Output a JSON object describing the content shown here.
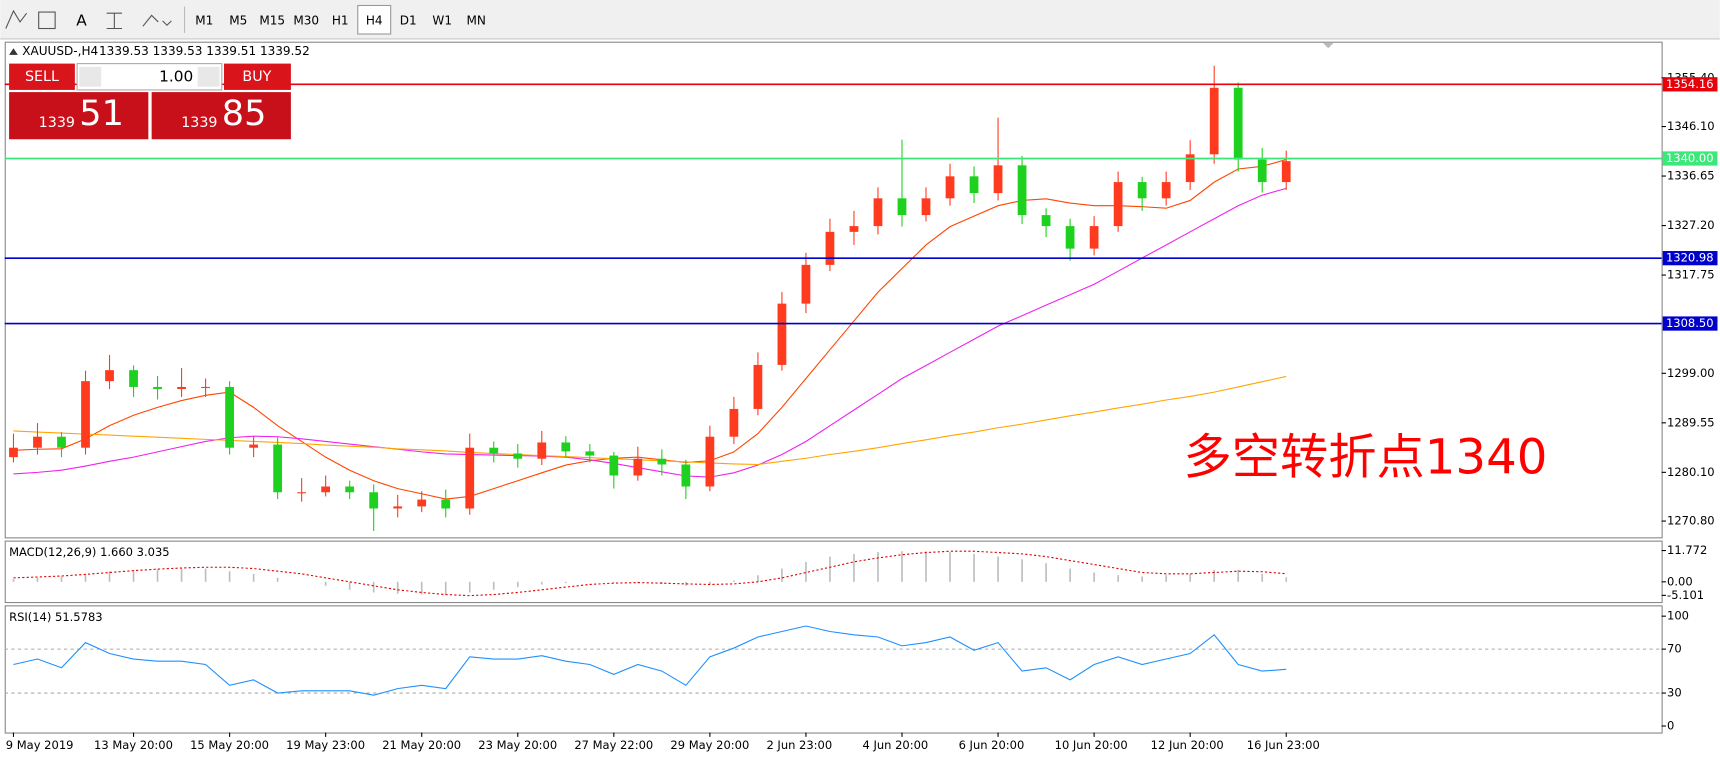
{
  "toolbar": {
    "tools": [
      "A"
    ],
    "timeframes": [
      "M1",
      "M5",
      "M15",
      "M30",
      "H1",
      "H4",
      "D1",
      "W1",
      "MN"
    ],
    "selected": "H4"
  },
  "trade_panel": {
    "sell": "SELL",
    "buy": "BUY",
    "lot": "1.00",
    "sell_big": "1339",
    "sell_small": "51",
    "buy_big": "1339",
    "buy_small": "85"
  },
  "chart_data": [
    {
      "type": "candlestick",
      "title": "XAUUSD-,H4",
      "quote": "1339.53 1339.53 1339.51 1339.52",
      "categories": [
        "9 May 2019",
        null,
        null,
        null,
        null,
        "13 May 20:00",
        null,
        null,
        null,
        "15 May 20:00",
        null,
        null,
        null,
        "19 May 23:00",
        null,
        null,
        null,
        "21 May 20:00",
        null,
        null,
        null,
        "23 May 20:00",
        null,
        null,
        null,
        "27 May 22:00",
        null,
        null,
        null,
        "29 May 20:00",
        null,
        null,
        null,
        "2 Jun 23:00",
        null,
        null,
        null,
        "4 Jun 20:00",
        null,
        null,
        null,
        "6 Jun 20:00",
        null,
        null,
        null,
        "10 Jun 20:00",
        null,
        null,
        null,
        "12 Jun 20:00",
        null,
        null,
        null,
        "16 Jun 23:00"
      ],
      "open": [
        1283.0,
        1284.8,
        1286.9,
        1284.8,
        1297.5,
        1299.6,
        1296.4,
        1296.0,
        1296.4,
        1296.4,
        1284.8,
        1285.4,
        1276.3,
        1276.3,
        1277.4,
        1276.3,
        1273.2,
        1273.6,
        1274.9,
        1273.2,
        1284.8,
        1283.7,
        1282.7,
        1285.8,
        1284.1,
        1283.3,
        1279.5,
        1282.7,
        1281.6,
        1277.4,
        1286.9,
        1292.2,
        1300.6,
        1312.3,
        1319.7,
        1326.0,
        1327.1,
        1332.4,
        1329.2,
        1332.4,
        1336.6,
        1333.4,
        1338.7,
        1329.2,
        1327.1,
        1322.8,
        1327.1,
        1335.5,
        1332.4,
        1335.5,
        1340.8,
        1353.5,
        1339.8,
        1335.5
      ],
      "high": [
        1287.5,
        1289.5,
        1287.8,
        1299.5,
        1302.5,
        1300.5,
        1298.5,
        1300.0,
        1298.0,
        1297.5,
        1287.0,
        1286.8,
        1279.0,
        1279.5,
        1278.5,
        1277.8,
        1275.8,
        1276.5,
        1276.8,
        1287.5,
        1286.0,
        1285.5,
        1288.0,
        1287.0,
        1285.5,
        1284.0,
        1285.0,
        1284.5,
        1282.5,
        1289.0,
        1294.5,
        1303.0,
        1314.5,
        1322.0,
        1328.5,
        1330.0,
        1334.5,
        1343.6,
        1334.5,
        1339.0,
        1338.5,
        1347.8,
        1340.5,
        1330.5,
        1328.5,
        1329.0,
        1337.5,
        1336.5,
        1337.5,
        1343.5,
        1357.7,
        1354.5,
        1342.0,
        1341.5
      ],
      "low": [
        1282.0,
        1283.5,
        1283.0,
        1283.5,
        1296.0,
        1294.5,
        1294.0,
        1294.5,
        1294.5,
        1283.5,
        1283.0,
        1275.0,
        1274.5,
        1275.5,
        1275.0,
        1268.9,
        1271.5,
        1272.5,
        1271.5,
        1272.0,
        1282.0,
        1281.0,
        1281.5,
        1283.0,
        1282.0,
        1277.0,
        1278.5,
        1279.5,
        1275.0,
        1276.5,
        1285.5,
        1291.0,
        1299.5,
        1310.5,
        1318.5,
        1323.5,
        1325.5,
        1327.0,
        1328.0,
        1331.0,
        1331.5,
        1332.0,
        1327.5,
        1325.0,
        1320.5,
        1321.5,
        1326.0,
        1330.0,
        1331.0,
        1334.0,
        1339.0,
        1337.5,
        1333.5,
        1334.0
      ],
      "close": [
        1284.8,
        1286.9,
        1284.8,
        1297.5,
        1299.6,
        1296.4,
        1296.0,
        1296.4,
        1296.4,
        1284.8,
        1285.4,
        1276.3,
        1276.3,
        1277.4,
        1276.3,
        1273.2,
        1273.6,
        1274.9,
        1273.2,
        1284.8,
        1283.7,
        1282.7,
        1285.8,
        1284.1,
        1283.3,
        1279.5,
        1282.7,
        1281.6,
        1277.4,
        1286.9,
        1292.2,
        1300.6,
        1312.3,
        1319.7,
        1326.0,
        1327.1,
        1332.4,
        1329.2,
        1332.4,
        1336.6,
        1333.4,
        1338.7,
        1329.2,
        1327.1,
        1322.8,
        1327.1,
        1335.5,
        1332.4,
        1335.5,
        1340.8,
        1353.5,
        1339.8,
        1335.5,
        1339.5
      ],
      "up_color": "#ff3b1f",
      "down_color": "#1ed11e",
      "lines": [
        {
          "color": "#ff4500",
          "values": [
            1284.3,
            1284.5,
            1284.6,
            1286.5,
            1289.0,
            1291.0,
            1292.5,
            1293.8,
            1294.8,
            1295.4,
            1292.5,
            1289.0,
            1286.0,
            1283.0,
            1280.5,
            1278.5,
            1277.0,
            1276.0,
            1275.0,
            1275.5,
            1277.0,
            1278.5,
            1280.0,
            1281.5,
            1282.3,
            1282.8,
            1283.0,
            1282.5,
            1282.0,
            1282.3,
            1284.0,
            1287.5,
            1292.5,
            1298.0,
            1303.5,
            1309.0,
            1314.5,
            1319.0,
            1323.5,
            1327.0,
            1329.0,
            1331.0,
            1332.0,
            1332.3,
            1331.5,
            1331.0,
            1331.0,
            1330.8,
            1330.5,
            1332.0,
            1335.5,
            1338.0,
            1338.5,
            1339.8
          ]
        },
        {
          "color": "#ee22ee",
          "values": [
            1279.8,
            1280.1,
            1280.5,
            1281.3,
            1282.2,
            1283.0,
            1284.0,
            1285.0,
            1286.0,
            1286.7,
            1287.0,
            1286.9,
            1286.5,
            1286.0,
            1285.5,
            1285.0,
            1284.5,
            1284.0,
            1283.6,
            1283.5,
            1283.4,
            1283.3,
            1283.2,
            1283.0,
            1282.5,
            1281.8,
            1281.0,
            1280.2,
            1279.4,
            1279.2,
            1280.0,
            1281.5,
            1283.5,
            1286.0,
            1289.0,
            1292.0,
            1295.0,
            1298.0,
            1300.5,
            1303.0,
            1305.5,
            1308.0,
            1310.0,
            1312.0,
            1314.0,
            1316.0,
            1318.5,
            1321.0,
            1323.5,
            1326.0,
            1328.5,
            1331.0,
            1333.0,
            1334.3
          ]
        },
        {
          "color": "#ffa500",
          "values": [
            1288.0,
            1287.8,
            1287.6,
            1287.4,
            1287.2,
            1287.0,
            1286.8,
            1286.6,
            1286.4,
            1286.2,
            1286.0,
            1285.8,
            1285.6,
            1285.3,
            1285.1,
            1284.9,
            1284.6,
            1284.4,
            1284.2,
            1283.9,
            1283.7,
            1283.5,
            1283.3,
            1283.1,
            1282.9,
            1282.7,
            1282.5,
            1282.3,
            1282.1,
            1281.9,
            1281.7,
            1281.6,
            1282.2,
            1282.8,
            1283.5,
            1284.1,
            1284.8,
            1285.6,
            1286.3,
            1287.1,
            1287.8,
            1288.6,
            1289.3,
            1290.1,
            1290.9,
            1291.6,
            1292.4,
            1293.1,
            1293.9,
            1294.6,
            1295.4,
            1296.4,
            1297.4,
            1298.4
          ]
        }
      ],
      "levels": [
        {
          "value": 1354.16,
          "color": "#e8000b"
        },
        {
          "value": 1340,
          "label": "1340.00",
          "color": "#3ce87a"
        },
        {
          "value": 1320.98,
          "color": "#0000cc"
        },
        {
          "value": 1308.5,
          "label": "1308.50",
          "color": "#0000cc"
        }
      ],
      "annotation": "多空转折点1340",
      "ylim": [
        1267.7,
        1362.3
      ],
      "yticks": [
        {
          "value": 1270.8,
          "label": "1270.80"
        },
        {
          "value": 1280.1,
          "label": "1280.10"
        },
        1289.55,
        {
          "value": 1299,
          "label": "1299.00"
        },
        1317.75,
        {
          "value": 1327.2,
          "label": "1327.20"
        },
        1336.65,
        {
          "value": 1346.1,
          "label": "1346.10"
        },
        {
          "value": 1355.4,
          "label": "1355.40"
        }
      ]
    },
    {
      "type": "macd",
      "title": "MACD(12,26,9) 1.660 3.035",
      "histogram": {
        "color": "#bdbdbd",
        "values": [
          1.0,
          1.5,
          2.0,
          3.0,
          4.0,
          4.5,
          4.8,
          5.0,
          5.0,
          4.0,
          3.0,
          1.5,
          0.0,
          -1.5,
          -3.0,
          -4.0,
          -4.5,
          -4.8,
          -5.0,
          -4.0,
          -3.0,
          -2.0,
          -1.0,
          -0.5,
          0.0,
          -0.3,
          -0.5,
          -0.8,
          -1.5,
          -1.0,
          0.5,
          2.5,
          5.0,
          7.5,
          9.5,
          10.5,
          11.2,
          11.5,
          11.5,
          11.2,
          10.5,
          9.5,
          8.5,
          7.0,
          5.0,
          3.5,
          2.5,
          2.0,
          2.5,
          3.0,
          4.5,
          4.5,
          3.0,
          1.66
        ]
      },
      "signal": {
        "color": "#e00000",
        "values": [
          1.5,
          1.8,
          2.2,
          2.8,
          3.5,
          4.2,
          4.8,
          5.2,
          5.5,
          5.5,
          5.0,
          4.0,
          3.0,
          1.5,
          0.0,
          -1.5,
          -3.0,
          -4.0,
          -4.8,
          -5.2,
          -4.8,
          -4.0,
          -3.0,
          -2.0,
          -1.0,
          -0.5,
          -0.3,
          -0.5,
          -0.8,
          -1.0,
          -0.8,
          0.0,
          1.5,
          3.5,
          5.5,
          7.5,
          9.0,
          10.2,
          11.0,
          11.5,
          11.5,
          11.0,
          10.5,
          9.5,
          8.0,
          6.5,
          5.0,
          3.5,
          3.0,
          3.0,
          3.5,
          4.0,
          3.8,
          3.035
        ]
      },
      "ylim": [
        -7.6,
        15.1
      ],
      "yticks": [
        -5.101,
        {
          "value": 0,
          "label": "0.00"
        },
        11.772
      ]
    },
    {
      "type": "line",
      "title": "RSI(14) 51.5783",
      "color": "#1e90ff",
      "values": [
        56,
        61,
        53,
        76,
        66,
        61,
        59,
        59,
        56,
        37,
        42,
        30,
        32,
        32,
        32,
        28,
        34,
        37,
        34,
        63,
        61,
        61,
        64,
        59,
        56,
        47,
        56,
        50,
        37,
        63,
        71,
        81,
        86,
        91,
        86,
        83,
        81,
        73,
        76,
        81,
        69,
        76,
        50,
        53,
        42,
        56,
        63,
        56,
        61,
        66,
        83,
        56,
        50,
        51.5783
      ],
      "levels": [
        70,
        30
      ],
      "ylim": [
        -5.9,
        108.9
      ],
      "yticks": [
        0,
        30,
        70,
        100
      ]
    }
  ]
}
